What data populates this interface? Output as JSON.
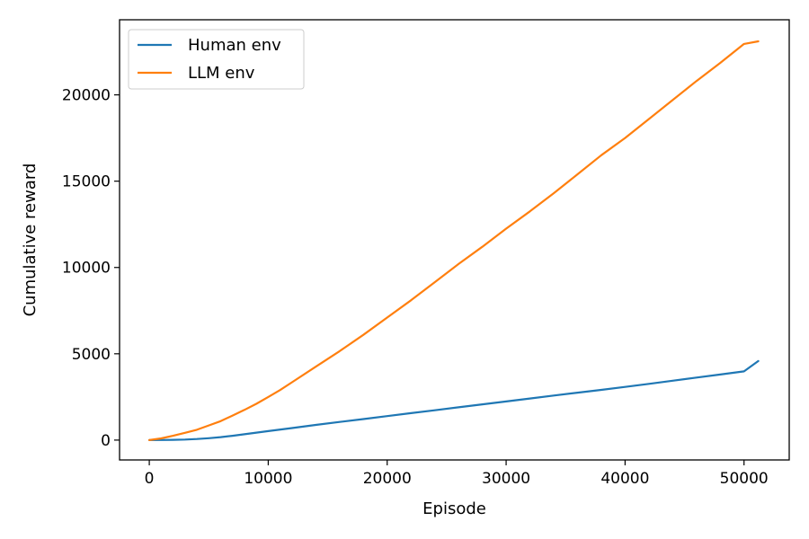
{
  "chart_data": {
    "type": "line",
    "title": "",
    "xlabel": "Episode",
    "ylabel": "Cumulative reward",
    "xlim": [
      -2500,
      53800
    ],
    "ylim": [
      -1150,
      24350
    ],
    "xticks": [
      0,
      10000,
      20000,
      30000,
      40000,
      50000
    ],
    "yticks": [
      0,
      5000,
      10000,
      15000,
      20000
    ],
    "grid": false,
    "legend_position": "upper-left",
    "series": [
      {
        "name": "Human env",
        "color": "#1f77b4",
        "x": [
          0,
          1000,
          2000,
          3000,
          4000,
          5000,
          6000,
          7000,
          8000,
          9000,
          10000,
          12000,
          14000,
          16000,
          18000,
          20000,
          22000,
          24000,
          26000,
          28000,
          30000,
          32000,
          34000,
          36000,
          38000,
          40000,
          42000,
          44000,
          46000,
          48000,
          50000,
          51200
        ],
        "y": [
          0,
          5,
          15,
          30,
          60,
          110,
          170,
          250,
          340,
          430,
          520,
          700,
          880,
          1050,
          1220,
          1390,
          1560,
          1730,
          1900,
          2070,
          2240,
          2410,
          2580,
          2750,
          2910,
          3080,
          3260,
          3440,
          3620,
          3800,
          3980,
          4580
        ]
      },
      {
        "name": "LLM env",
        "color": "#ff7f0e",
        "x": [
          0,
          1000,
          2000,
          3000,
          4000,
          5000,
          6000,
          7000,
          8000,
          9000,
          10000,
          11000,
          12000,
          14000,
          16000,
          18000,
          20000,
          22000,
          24000,
          26000,
          28000,
          30000,
          32000,
          34000,
          36000,
          38000,
          40000,
          42000,
          44000,
          46000,
          48000,
          50000,
          51200
        ],
        "y": [
          0,
          100,
          250,
          420,
          600,
          850,
          1100,
          1420,
          1750,
          2100,
          2500,
          2900,
          3350,
          4250,
          5150,
          6100,
          7100,
          8100,
          9150,
          10200,
          11200,
          12250,
          13250,
          14300,
          15400,
          16500,
          17500,
          18600,
          19700,
          20800,
          21850,
          22950,
          23100
        ]
      }
    ]
  }
}
